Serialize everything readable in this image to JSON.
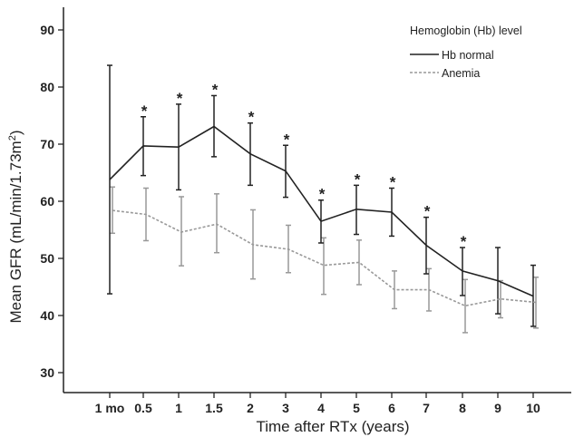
{
  "chart_data": {
    "type": "line",
    "xlabel": "Time after RTx (years)",
    "ylabel_main": "Mean GFR (mL/min/1.73m",
    "ylabel_sup": "2",
    "ylabel_close": ")",
    "categories": [
      "1 mo",
      "0.5",
      "1",
      "1.5",
      "2",
      "3",
      "4",
      "5",
      "6",
      "7",
      "8",
      "9",
      "10"
    ],
    "yticks": [
      "30",
      "40",
      "50",
      "60",
      "70",
      "80",
      "90"
    ],
    "ylim": [
      28,
      92
    ],
    "legend": {
      "title": "Hemoglobin (Hb) level",
      "placement": "top-right"
    },
    "series": [
      {
        "name": "Hb normal",
        "color": "#222222",
        "style": "solid",
        "values": [
          63.8,
          69.7,
          69.5,
          73.1,
          68.3,
          65.3,
          56.5,
          58.6,
          58.1,
          52.3,
          47.8,
          46.1,
          43.4
        ],
        "lower": [
          43.8,
          64.5,
          62.0,
          67.8,
          62.8,
          60.7,
          52.7,
          54.2,
          53.9,
          47.3,
          43.5,
          40.3,
          38.1
        ],
        "upper": [
          83.8,
          74.8,
          77.0,
          78.5,
          73.7,
          69.8,
          60.2,
          62.8,
          62.3,
          57.2,
          51.9,
          51.9,
          48.8
        ]
      },
      {
        "name": "Anemia",
        "color": "#999999",
        "style": "dashed",
        "values": [
          58.4,
          57.7,
          54.6,
          56.0,
          52.4,
          51.6,
          48.8,
          49.3,
          44.5,
          44.5,
          41.7,
          42.9,
          42.3
        ],
        "lower": [
          54.4,
          53.1,
          48.7,
          51.0,
          46.4,
          47.5,
          43.7,
          45.4,
          41.2,
          40.8,
          37.0,
          39.6,
          37.8
        ],
        "upper": [
          62.5,
          62.3,
          60.8,
          61.3,
          58.5,
          55.8,
          53.6,
          53.2,
          47.8,
          48.2,
          46.3,
          46.1,
          46.7
        ]
      }
    ],
    "significance_marker": "*",
    "significant_points": [
      "0.5",
      "1",
      "1.5",
      "2",
      "3",
      "4",
      "5",
      "6",
      "7",
      "8"
    ]
  }
}
